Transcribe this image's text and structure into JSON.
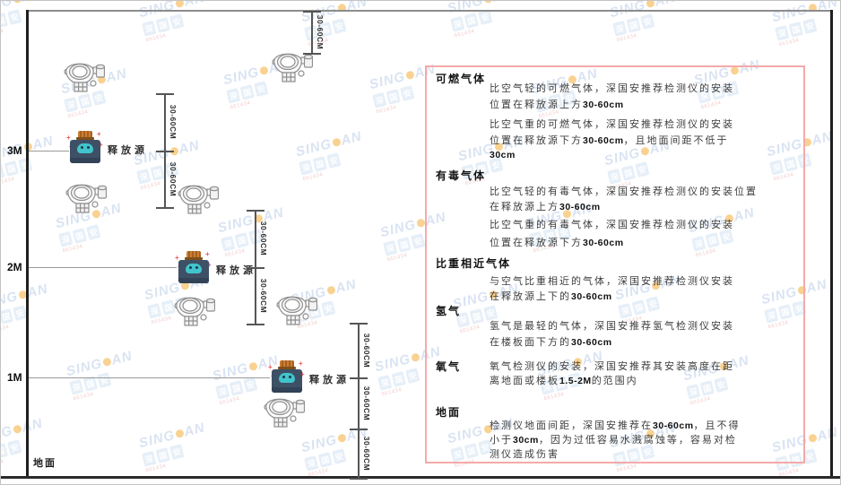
{
  "watermark": {
    "brand_prefix": "SING",
    "brand_suffix": "AN",
    "sub_chars": [
      "深",
      "国",
      "安"
    ],
    "note": "661434",
    "colors": {
      "text": "#b4c9e6",
      "dot": "#f5a728",
      "note": "#e69a9a"
    }
  },
  "diagram": {
    "dimension_label": "30-60CM",
    "source_label": "释放源",
    "ground_label": "地面",
    "levels": [
      {
        "label": "3M"
      },
      {
        "label": "2M"
      },
      {
        "label": "1M"
      }
    ]
  },
  "panel": {
    "border_color": "#f5a9a9",
    "sections": [
      {
        "heading": "可燃气体",
        "paragraphs": [
          [
            "比空气轻的可燃气体，深国安推荐检测仪的安装",
            "位置在释放源上方30-60cm"
          ],
          [
            "比空气重的可燃气体，深国安推荐检测仪的安装",
            "位置在释放源下方30-60cm，且地面间距不低于",
            "30cm"
          ]
        ]
      },
      {
        "heading": "有毒气体",
        "paragraphs": [
          [
            "比空气轻的有毒气体，深国安推荐检测仪的安装位置",
            "在释放源上方30-60cm"
          ],
          [
            "比空气重的有毒气体，深国安推荐检测仪的安装",
            "位置在释放源下方30-60cm"
          ]
        ]
      },
      {
        "heading": "比重相近气体",
        "paragraphs": [
          [
            "与空气比重相近的气体，深国安推荐检测仪安装",
            "在释放源上下的30-60cm"
          ]
        ]
      },
      {
        "heading": "氢气",
        "paragraphs": [
          [
            "氢气是最轻的气体，深国安推荐氢气检测仪安装",
            "在楼板面下方的30-60cm"
          ]
        ]
      },
      {
        "heading": "氧气",
        "inline": true,
        "paragraphs": [
          [
            "氧气检测仪的安装，深国安推荐其安装高度在距",
            "离地面或楼板1.5-2M的范围内"
          ]
        ]
      },
      {
        "heading": "地面",
        "paragraphs": [
          [
            "检测仪地面间距，深国安推荐在30-60cm，且不得",
            "小于30cm，因为过低容易水溅腐蚀等，容易对检",
            "测仪造成伤害"
          ]
        ]
      }
    ]
  }
}
